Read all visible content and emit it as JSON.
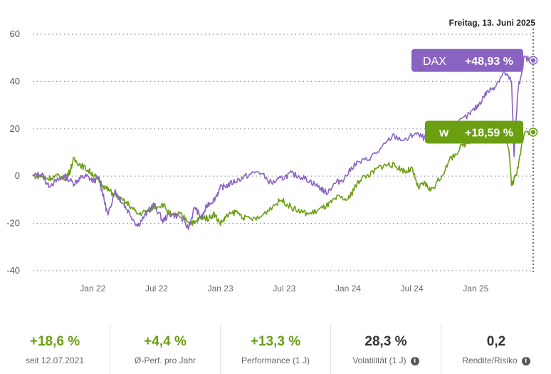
{
  "chart_data": {
    "type": "line",
    "title": "",
    "date_label": "Freitag, 13. Juni 2025",
    "ylim": [
      -40,
      60
    ],
    "y_ticks": [
      -40,
      -20,
      0,
      20,
      40,
      60
    ],
    "y_tick_labels": [
      "-40",
      "-20",
      "0",
      "20",
      "40",
      "60"
    ],
    "x_range": [
      2021.53,
      2025.45
    ],
    "x_ticks": [
      {
        "label": "Jan 22",
        "x": 2022.0
      },
      {
        "label": "Jul 22",
        "x": 2022.5
      },
      {
        "label": "Jan 23",
        "x": 2023.0
      },
      {
        "label": "Jul 23",
        "x": 2023.5
      },
      {
        "label": "Jan 24",
        "x": 2024.0
      },
      {
        "label": "Jul 24",
        "x": 2024.5
      },
      {
        "label": "Jan 25",
        "x": 2025.0
      }
    ],
    "series": [
      {
        "name": "DAX",
        "color": "#8a63c2",
        "badge_label": "DAX",
        "badge_value": "+48,93 %",
        "final_value": 48.93,
        "x": [
          2021.53,
          2021.6,
          2021.65,
          2021.72,
          2021.78,
          2021.85,
          2021.9,
          2021.95,
          2022.0,
          2022.05,
          2022.08,
          2022.12,
          2022.17,
          2022.22,
          2022.28,
          2022.35,
          2022.42,
          2022.48,
          2022.55,
          2022.6,
          2022.68,
          2022.75,
          2022.8,
          2022.85,
          2022.9,
          2022.95,
          2023.0,
          2023.05,
          2023.12,
          2023.2,
          2023.3,
          2023.4,
          2023.48,
          2023.55,
          2023.62,
          2023.7,
          2023.78,
          2023.83,
          2023.9,
          2023.97,
          2024.05,
          2024.15,
          2024.25,
          2024.35,
          2024.45,
          2024.52,
          2024.6,
          2024.68,
          2024.75,
          2024.85,
          2024.95,
          2025.02,
          2025.08,
          2025.15,
          2025.22,
          2025.28,
          2025.3,
          2025.33,
          2025.38,
          2025.45
        ],
        "y": [
          0,
          1,
          -4,
          -2,
          0,
          -3,
          -1,
          0,
          -2,
          -1,
          -8,
          -17,
          -6,
          -10,
          -15,
          -21,
          -16,
          -12,
          -19,
          -16,
          -17,
          -22,
          -13,
          -18,
          -12,
          -10,
          -5,
          -4,
          -2,
          0,
          2,
          -3,
          -1,
          1,
          0,
          -2,
          -5,
          -7,
          -3,
          -1,
          5,
          7,
          11,
          17,
          15,
          18,
          16,
          20,
          17,
          22,
          26,
          30,
          35,
          38,
          44,
          40,
          9,
          36,
          50,
          48.93
        ]
      },
      {
        "name": "W",
        "color": "#6a9f12",
        "badge_label": "W",
        "badge_value": "+18,59 %",
        "final_value": 18.59,
        "x": [
          2021.53,
          2021.6,
          2021.65,
          2021.72,
          2021.78,
          2021.82,
          2021.85,
          2021.9,
          2021.95,
          2022.0,
          2022.05,
          2022.1,
          2022.15,
          2022.22,
          2022.28,
          2022.35,
          2022.42,
          2022.48,
          2022.55,
          2022.62,
          2022.68,
          2022.75,
          2022.8,
          2022.85,
          2022.9,
          2022.95,
          2023.0,
          2023.05,
          2023.12,
          2023.2,
          2023.3,
          2023.4,
          2023.48,
          2023.55,
          2023.62,
          2023.7,
          2023.78,
          2023.85,
          2023.92,
          2024.0,
          2024.05,
          2024.1,
          2024.18,
          2024.25,
          2024.32,
          2024.38,
          2024.45,
          2024.5,
          2024.55,
          2024.6,
          2024.65,
          2024.72,
          2024.8,
          2024.88,
          2024.95,
          2025.02,
          2025.1,
          2025.18,
          2025.22,
          2025.26,
          2025.28,
          2025.32,
          2025.38,
          2025.45
        ],
        "y": [
          0,
          0,
          -1,
          0,
          -1,
          2,
          7,
          5,
          3,
          1,
          -2,
          -5,
          -7,
          -10,
          -12,
          -16,
          -15,
          -13,
          -12,
          -17,
          -16,
          -19,
          -20,
          -17,
          -18,
          -16,
          -20,
          -17,
          -15,
          -18,
          -18,
          -13,
          -10,
          -13,
          -15,
          -16,
          -14,
          -12,
          -9,
          -10,
          -5,
          -1,
          1,
          4,
          5,
          4,
          2,
          3,
          -5,
          -3,
          -6,
          -1,
          7,
          12,
          15,
          17,
          19,
          21,
          18,
          12,
          -4,
          1,
          19,
          18.59
        ]
      }
    ]
  },
  "stats": [
    {
      "value": "+18,6 %",
      "label": "seit 12.07.2021",
      "style": "green",
      "info": false
    },
    {
      "value": "+4,4 %",
      "label": "Ø-Perf. pro Jahr",
      "style": "green",
      "info": false
    },
    {
      "value": "+13,3 %",
      "label": "Performance (1 J)",
      "style": "green",
      "info": false
    },
    {
      "value": "28,3 %",
      "label": "Volatilität (1 J)",
      "style": "dark",
      "info": true
    },
    {
      "value": "0,2",
      "label": "Rendite/Risiko",
      "style": "dark",
      "info": true
    }
  ]
}
